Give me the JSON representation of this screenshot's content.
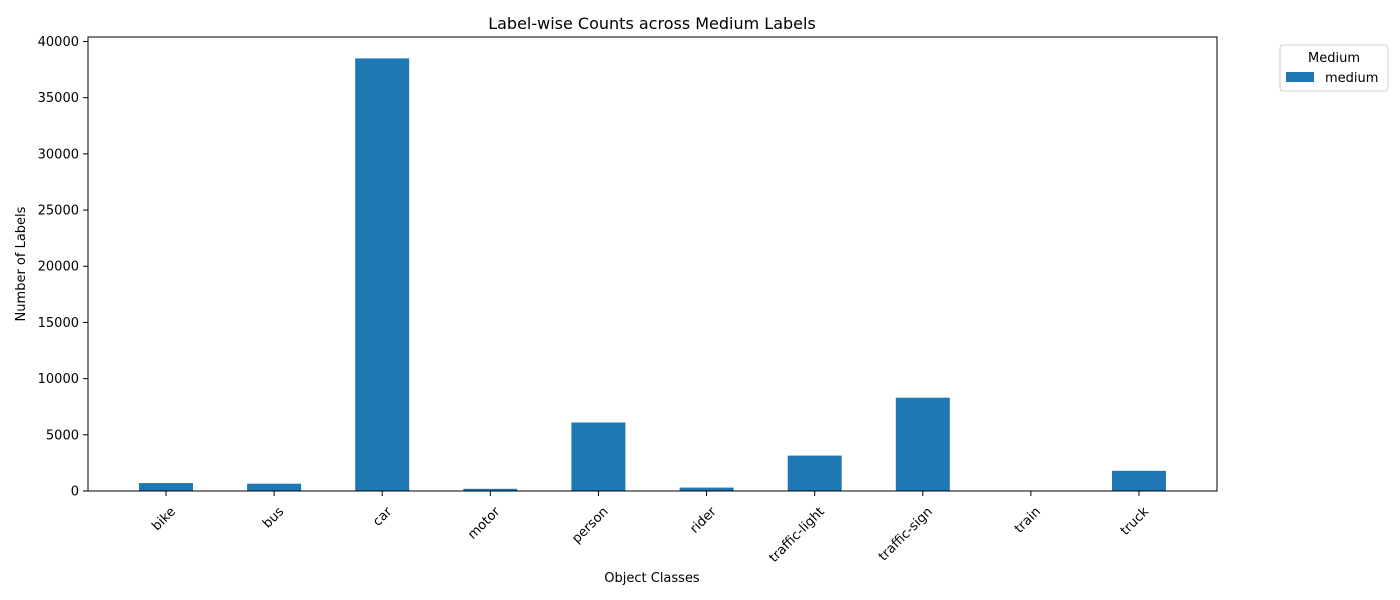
{
  "chart_data": {
    "type": "bar",
    "title": "Label-wise Counts across Medium Labels",
    "xlabel": "Object Classes",
    "ylabel": "Number of Labels",
    "categories": [
      "bike",
      "bus",
      "car",
      "motor",
      "person",
      "rider",
      "traffic-light",
      "traffic-sign",
      "train",
      "truck"
    ],
    "series": [
      {
        "name": "medium",
        "color": "#1f77b4",
        "values": [
          700,
          650,
          38500,
          200,
          6100,
          300,
          3150,
          8300,
          20,
          1800
        ]
      }
    ],
    "ylim": [
      0,
      40400
    ],
    "yticks": [
      0,
      5000,
      10000,
      15000,
      20000,
      25000,
      30000,
      35000,
      40000
    ],
    "grid": false,
    "legend": {
      "title": "Medium",
      "placement": "outside-top-right"
    },
    "x_tick_rotation_deg": 45
  }
}
